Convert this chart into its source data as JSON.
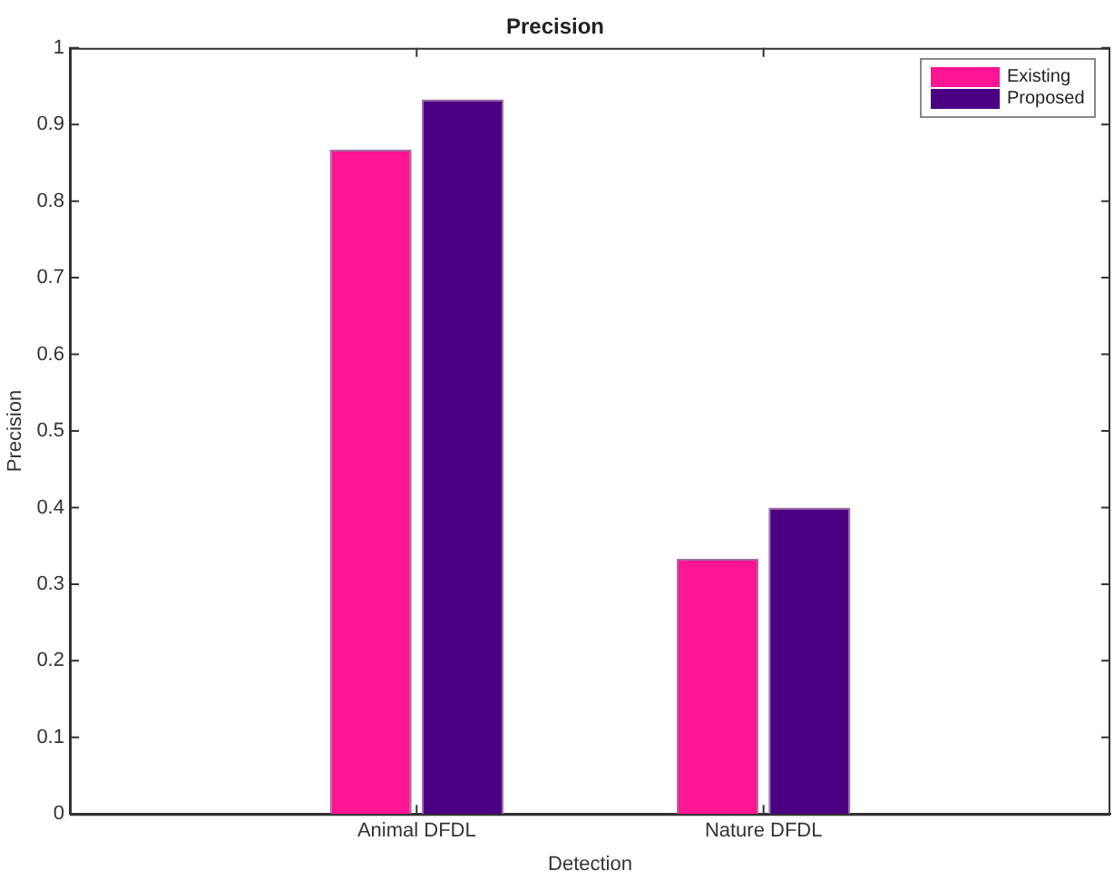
{
  "chart_data": {
    "type": "bar",
    "title": "Precision",
    "xlabel": "Detection",
    "ylabel": "Precision",
    "categories": [
      "Animal DFDL",
      "Nature DFDL"
    ],
    "series": [
      {
        "name": "Existing",
        "color": "#ff1493",
        "values": [
          0.867,
          0.333
        ]
      },
      {
        "name": "Proposed",
        "color": "#4b0082",
        "values": [
          0.933,
          0.4
        ]
      }
    ],
    "ylim": [
      0,
      1
    ],
    "yticks": [
      0,
      0.1,
      0.2,
      0.3,
      0.4,
      0.5,
      0.6,
      0.7,
      0.8,
      0.9,
      1
    ],
    "grid": false,
    "legend": "top right"
  }
}
